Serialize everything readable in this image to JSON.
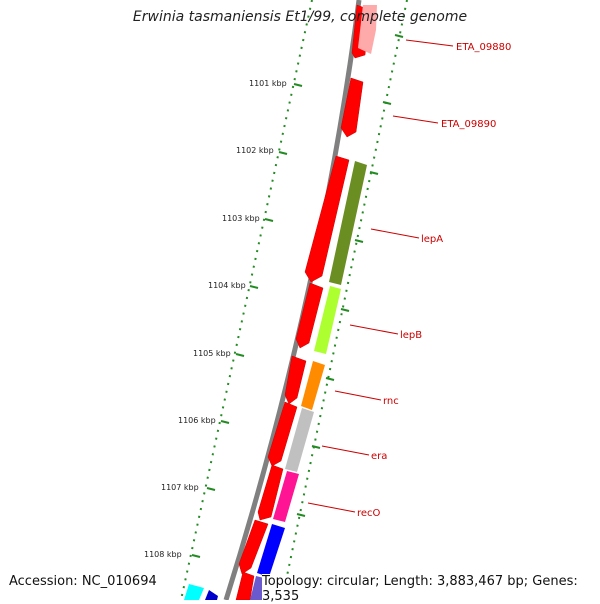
{
  "title": "Erwinia tasmaniensis Et1/99, complete genome",
  "footer": {
    "accession": "Accession: NC_010694",
    "topology": "Topology: circular; Length: 3,883,467 bp; Genes: 3,535"
  },
  "ticks": [
    {
      "label": "1101 kbp"
    },
    {
      "label": "1102 kbp"
    },
    {
      "label": "1103 kbp"
    },
    {
      "label": "1104 kbp"
    },
    {
      "label": "1105 kbp"
    },
    {
      "label": "1106 kbp"
    },
    {
      "label": "1107 kbp"
    },
    {
      "label": "1108 kbp"
    }
  ],
  "genes": [
    {
      "name": "ETA_09880"
    },
    {
      "name": "ETA_09890"
    },
    {
      "name": "lepA"
    },
    {
      "name": "lepB"
    },
    {
      "name": "rnc"
    },
    {
      "name": "era"
    },
    {
      "name": "recO"
    }
  ],
  "colors": {
    "forward_cds": "#ff0000",
    "lepA": "#6b8e23",
    "lepB": "#adff2f",
    "rnc": "#ff8c00",
    "era": "#c0c0c0",
    "recO": "#ff1493",
    "blue_gene": "#0000ff",
    "cyan_gene": "#00ffff",
    "faded_gene": "#ffaaaa",
    "backbone": "#808080",
    "tick_marks": "#228b22",
    "labels": "#cc0000"
  }
}
